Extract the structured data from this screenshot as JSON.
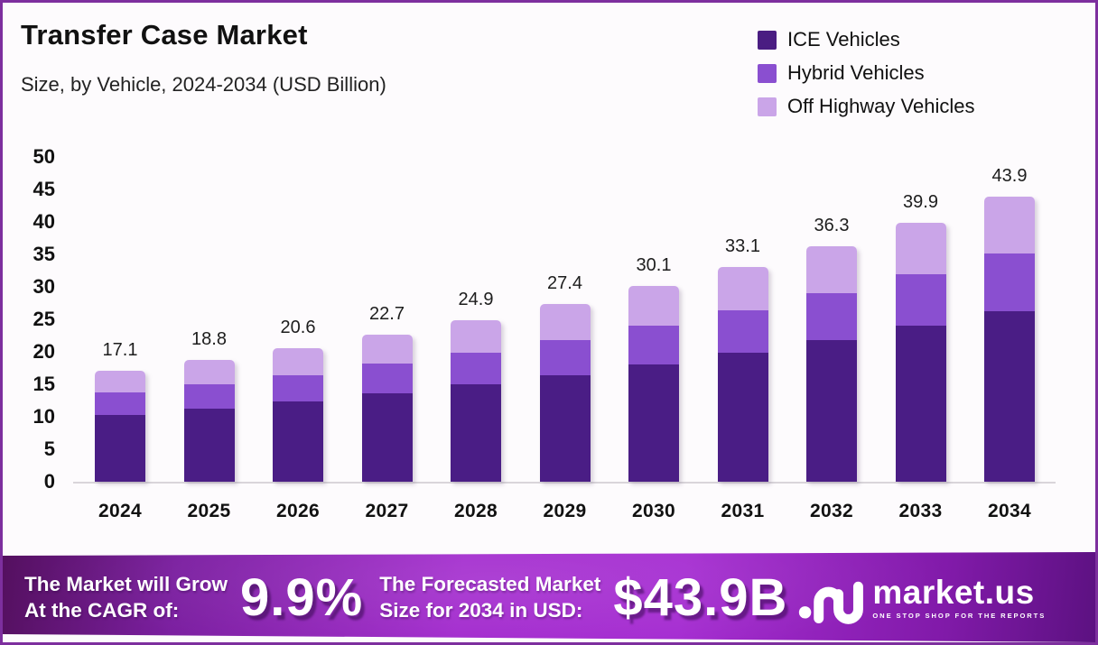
{
  "header": {
    "title": "Transfer Case Market",
    "subtitle": "Size, by Vehicle, 2024-2034 (USD Billion)"
  },
  "legend": [
    {
      "label": "ICE Vehicles",
      "color": "#4a1d82"
    },
    {
      "label": "Hybrid Vehicles",
      "color": "#8a4fd0"
    },
    {
      "label": "Off Highway Vehicles",
      "color": "#caa5e8"
    }
  ],
  "chart_data": {
    "type": "bar",
    "stacked": true,
    "title": "Transfer Case Market",
    "subtitle": "Size, by Vehicle, 2024-2034 (USD Billion)",
    "unit": "USD Billion",
    "categories": [
      "2024",
      "2025",
      "2026",
      "2027",
      "2028",
      "2029",
      "2030",
      "2031",
      "2032",
      "2033",
      "2034"
    ],
    "series": [
      {
        "name": "ICE Vehicles",
        "color": "#4a1d85",
        "values": [
          10.3,
          11.3,
          12.4,
          13.7,
          15.0,
          16.4,
          18.0,
          19.9,
          21.8,
          24.0,
          26.3
        ]
      },
      {
        "name": "Hybrid Vehicles",
        "color": "#8a4fd0",
        "values": [
          3.4,
          3.7,
          4.1,
          4.5,
          4.9,
          5.5,
          6.0,
          6.6,
          7.3,
          8.0,
          8.8
        ]
      },
      {
        "name": "Off Highway Vehicles",
        "color": "#caa5e8",
        "values": [
          3.4,
          3.8,
          4.1,
          4.5,
          5.0,
          5.5,
          6.1,
          6.6,
          7.2,
          7.9,
          8.8
        ]
      }
    ],
    "totals": [
      17.1,
      18.8,
      20.6,
      22.7,
      24.9,
      27.4,
      30.1,
      33.1,
      36.3,
      39.9,
      43.9
    ],
    "ylim": [
      0,
      50
    ],
    "yticks": [
      0,
      5,
      10,
      15,
      20,
      25,
      30,
      35,
      40,
      45,
      50
    ],
    "grid": false,
    "legend_position": "top-right",
    "value_labels": "above-bars"
  },
  "footer": {
    "cagr_label_line1": "The Market will Grow",
    "cagr_label_line2": "At the CAGR of:",
    "cagr_value": "9.9%",
    "forecast_label_line1": "The Forecasted Market",
    "forecast_label_line2": "Size for 2034 in USD:",
    "forecast_value": "$43.9B",
    "brand": "market.us",
    "brand_tagline": "ONE STOP SHOP FOR THE REPORTS"
  },
  "colors": {
    "page_border": "#7d2f9e",
    "background": "#fdfbfd",
    "axis_line": "#d9d5da",
    "text": "#111111",
    "footer_gradient_left": "#54105f",
    "footer_gradient_center": "#a52cd1",
    "footer_gradient_right": "#5c1181"
  }
}
